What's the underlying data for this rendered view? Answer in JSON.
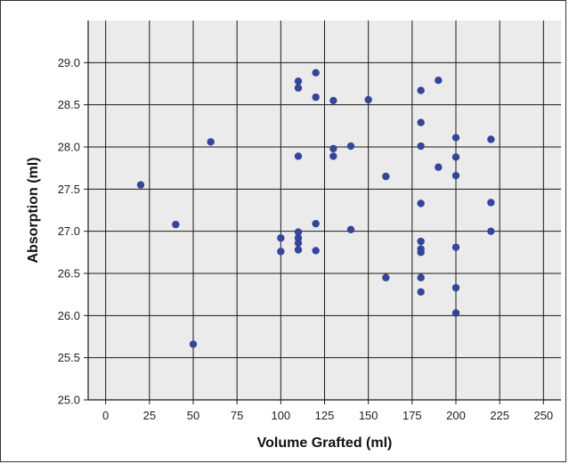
{
  "chart_data": {
    "type": "scatter",
    "title": "",
    "xlabel": "Volume Grafted (ml)",
    "ylabel": "Absorption (ml)",
    "xlim": [
      -10,
      260
    ],
    "ylim": [
      25.0,
      29.5
    ],
    "x_ticks": [
      0,
      25,
      50,
      75,
      100,
      125,
      150,
      175,
      200,
      225,
      250
    ],
    "y_ticks": [
      25.0,
      25.5,
      26.0,
      26.5,
      27.0,
      27.5,
      28.0,
      28.5,
      29.0
    ],
    "x_tick_labels": [
      "0",
      "25",
      "50",
      "75",
      "100",
      "125",
      "150",
      "175",
      "200",
      "225",
      "250"
    ],
    "y_tick_labels": [
      "25.0",
      "25.5",
      "26.0",
      "26.5",
      "27.0",
      "27.5",
      "28.0",
      "28.5",
      "29.0"
    ],
    "grid": true,
    "legend": "none",
    "background_color": "#ebebeb",
    "point_color": "#34459a",
    "series": [
      {
        "points": [
          [
            20,
            27.55
          ],
          [
            40,
            27.08
          ],
          [
            50,
            25.66
          ],
          [
            60,
            28.06
          ],
          [
            100,
            26.92
          ],
          [
            100,
            26.76
          ],
          [
            110,
            28.78
          ],
          [
            110,
            28.7
          ],
          [
            110,
            27.89
          ],
          [
            110,
            26.99
          ],
          [
            110,
            26.92
          ],
          [
            110,
            26.86
          ],
          [
            110,
            26.78
          ],
          [
            120,
            28.88
          ],
          [
            120,
            28.59
          ],
          [
            120,
            27.09
          ],
          [
            120,
            26.77
          ],
          [
            130,
            28.55
          ],
          [
            130,
            27.98
          ],
          [
            130,
            27.89
          ],
          [
            140,
            28.01
          ],
          [
            140,
            27.02
          ],
          [
            150,
            28.56
          ],
          [
            160,
            27.65
          ],
          [
            160,
            26.45
          ],
          [
            180,
            28.67
          ],
          [
            180,
            28.29
          ],
          [
            180,
            28.01
          ],
          [
            180,
            27.33
          ],
          [
            180,
            26.88
          ],
          [
            180,
            26.79
          ],
          [
            180,
            26.75
          ],
          [
            180,
            26.45
          ],
          [
            180,
            26.28
          ],
          [
            190,
            28.79
          ],
          [
            190,
            27.76
          ],
          [
            200,
            28.11
          ],
          [
            200,
            27.88
          ],
          [
            200,
            27.66
          ],
          [
            200,
            26.81
          ],
          [
            200,
            26.33
          ],
          [
            200,
            26.03
          ],
          [
            220,
            28.09
          ],
          [
            220,
            27.34
          ],
          [
            220,
            27.0
          ]
        ]
      }
    ]
  }
}
